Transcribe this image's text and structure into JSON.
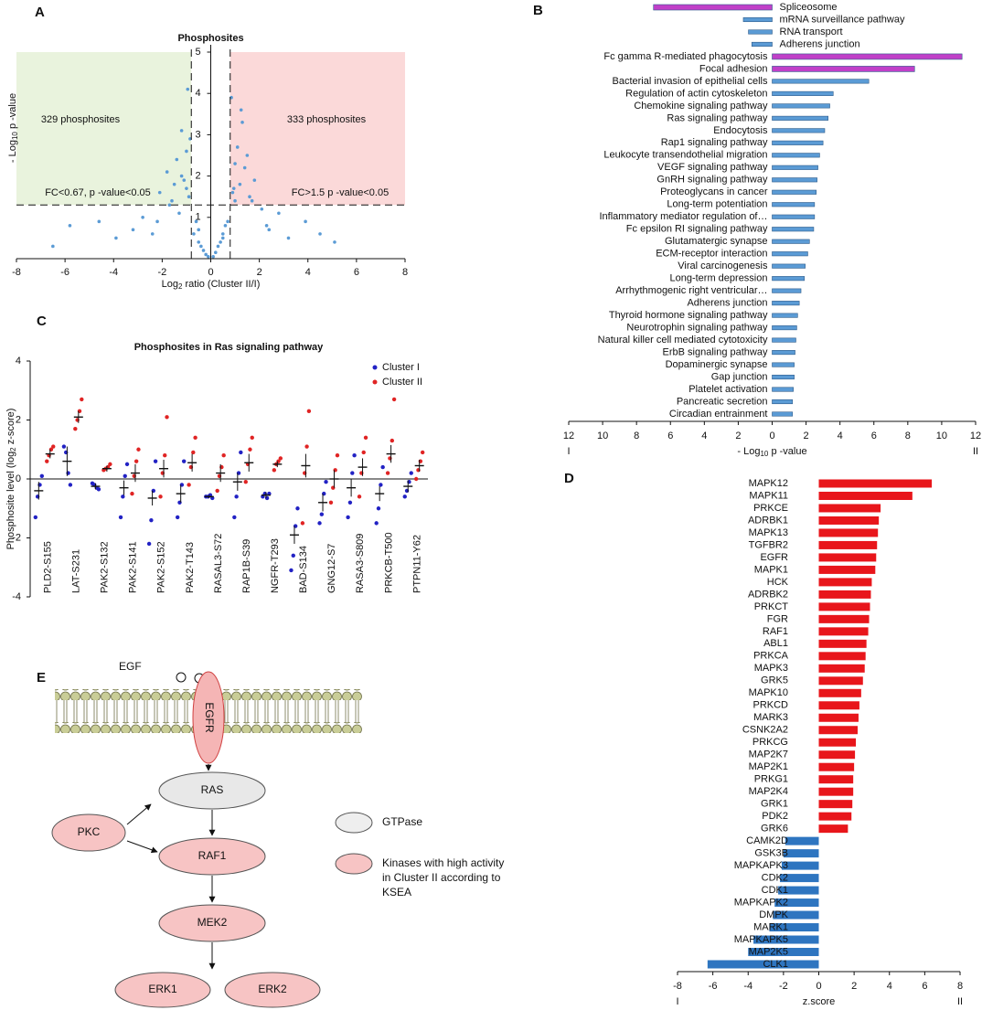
{
  "panel_labels": [
    "A",
    "B",
    "C",
    "D",
    "E"
  ],
  "chart_data": [
    {
      "type": "scatter",
      "title": "Phosphosites",
      "xlabel": {
        "pre": "Log",
        "sub": "2",
        "post": " ratio (Cluster II/I)"
      },
      "ylabel": {
        "pre": "- Log",
        "sub": "10",
        "post": " p -value"
      },
      "xlim": [
        -8,
        8
      ],
      "ylim": [
        0,
        5
      ],
      "xticks": [
        -8,
        -6,
        -4,
        -2,
        0,
        2,
        4,
        6,
        8
      ],
      "yticks": [
        1,
        2,
        3,
        4,
        5
      ],
      "color": "#5b9bd5",
      "thresholds": {
        "x": [
          -0.8,
          0.8
        ],
        "y": 1.3
      },
      "regions": [
        {
          "label": "329 phosphosites",
          "note": "FC<0.67, p -value<0.05",
          "color": "#e9f3dd"
        },
        {
          "label": "333 phosphosites",
          "note": "FC>1.5 p -value<0.05",
          "color": "#fbd9d9"
        }
      ],
      "x": [
        -6.5,
        -5.8,
        -4.6,
        -3.9,
        -3.2,
        -2.8,
        -2.4,
        -2.1,
        -1.8,
        -1.6,
        -1.4,
        -1.3,
        -1.2,
        -1.1,
        -1.0,
        -0.9,
        -0.7,
        -0.6,
        -0.5,
        -0.4,
        -0.3,
        -0.2,
        -0.1,
        0.1,
        0.2,
        0.3,
        0.4,
        0.5,
        0.6,
        0.7,
        0.9,
        1.0,
        1.1,
        1.2,
        1.3,
        1.4,
        1.6,
        1.8,
        2.1,
        2.4,
        2.8,
        3.2,
        3.9,
        4.5,
        5.1,
        -1.5,
        -1.2,
        -0.95,
        -1.7,
        -2.2,
        1.5,
        1.25,
        0.95,
        1.7,
        2.3,
        -0.85,
        0.85,
        -1.0,
        1.0,
        -0.5,
        0.5
      ],
      "y": [
        0.3,
        0.8,
        0.9,
        0.5,
        0.7,
        1.0,
        0.6,
        1.6,
        2.1,
        1.4,
        2.4,
        1.1,
        3.1,
        1.9,
        2.6,
        1.5,
        0.6,
        0.9,
        0.4,
        0.3,
        0.2,
        0.1,
        0.05,
        0.05,
        0.15,
        0.3,
        0.4,
        0.5,
        0.8,
        0.9,
        1.6,
        2.3,
        2.7,
        1.8,
        3.3,
        2.2,
        1.5,
        1.9,
        1.2,
        0.7,
        1.1,
        0.5,
        0.9,
        0.6,
        0.4,
        1.8,
        2.0,
        4.1,
        1.3,
        0.9,
        2.5,
        3.6,
        1.7,
        1.4,
        0.8,
        2.9,
        3.9,
        1.7,
        1.4,
        0.7,
        0.6
      ]
    },
    {
      "type": "hbar",
      "categories": [
        "Spliceosome",
        "mRNA surveillance pathway",
        "RNA transport",
        "Adherens junction",
        "Fc gamma R-mediated phagocytosis",
        "Focal adhesion",
        "Bacterial invasion of epithelial cells",
        "Regulation of actin cytoskeleton",
        "Chemokine signaling pathway",
        "Ras signaling pathway",
        "Endocytosis",
        "Rap1 signaling pathway",
        "Leukocyte transendothelial migration",
        "VEGF signaling pathway",
        "GnRH signaling pathway",
        "Proteoglycans in cancer",
        "Long-term potentiation",
        "Inflammatory mediator regulation of…",
        "Fc epsilon RI signaling pathway",
        "Glutamatergic synapse",
        "ECM-receptor interaction",
        "Viral carcinogenesis",
        "Long-term depression",
        "Arrhythmogenic right ventricular…",
        "Adherens junction",
        "Thyroid hormone signaling pathway",
        "Neurotrophin signaling pathway",
        "Natural killer cell mediated cytotoxicity",
        "ErbB signaling pathway",
        "Dopaminergic synapse",
        "Gap junction",
        "Platelet activation",
        "Pancreatic secretion",
        "Circadian entrainment"
      ],
      "values": [
        -7.0,
        -1.7,
        -1.4,
        -1.2,
        11.2,
        8.4,
        5.7,
        3.6,
        3.4,
        3.3,
        3.1,
        3.0,
        2.8,
        2.7,
        2.65,
        2.6,
        2.5,
        2.5,
        2.45,
        2.2,
        2.1,
        1.95,
        1.9,
        1.7,
        1.6,
        1.5,
        1.45,
        1.4,
        1.35,
        1.3,
        1.3,
        1.25,
        1.2,
        1.2
      ],
      "colors": [
        "#c040c8",
        "#5b9bd5",
        "#5b9bd5",
        "#5b9bd5",
        "#c040c8",
        "#c040c8",
        "#5b9bd5",
        "#5b9bd5",
        "#5b9bd5",
        "#5b9bd5",
        "#5b9bd5",
        "#5b9bd5",
        "#5b9bd5",
        "#5b9bd5",
        "#5b9bd5",
        "#5b9bd5",
        "#5b9bd5",
        "#5b9bd5",
        "#5b9bd5",
        "#5b9bd5",
        "#5b9bd5",
        "#5b9bd5",
        "#5b9bd5",
        "#5b9bd5",
        "#5b9bd5",
        "#5b9bd5",
        "#5b9bd5",
        "#5b9bd5",
        "#5b9bd5",
        "#5b9bd5",
        "#5b9bd5",
        "#5b9bd5",
        "#5b9bd5",
        "#5b9bd5"
      ],
      "xlim": [
        -12,
        12
      ],
      "xticks": [
        {
          "value": -12,
          "label": "12"
        },
        {
          "value": -10,
          "label": "10"
        },
        {
          "value": -8,
          "label": "8"
        },
        {
          "value": -6,
          "label": "6"
        },
        {
          "value": -4,
          "label": "4"
        },
        {
          "value": -2,
          "label": "2"
        },
        0,
        2,
        4,
        6,
        8,
        10,
        12
      ],
      "xlabel": {
        "pre": "-  Log",
        "sub": "10",
        "post": " p -value"
      },
      "end_labels": [
        "I",
        "II"
      ]
    },
    {
      "type": "dot",
      "title": "Phosphosites in Ras signaling pathway",
      "categories": [
        "PLD2-S155",
        "LAT-S231",
        "PAK2-S132",
        "PAK2-S141",
        "PAK2-S152",
        "PAK2-T143",
        "RASAL3-S72",
        "RAP1B-S39",
        "NGFR-T293",
        "BAD-S134",
        "GNG12-S7",
        "RASA3-S809",
        "PRKCB-T500",
        "PTPN11-Y62"
      ],
      "ylim": [
        -4,
        4
      ],
      "yticks": [
        -4,
        -2,
        0,
        2,
        4
      ],
      "ylabel": {
        "pre": "Phosphosite level (log",
        "sub": "2",
        "post": " z-score)"
      },
      "legend": "top-right",
      "series": [
        {
          "name": "Cluster I",
          "color": "#2222c4",
          "values": [
            -0.4,
            0.6,
            -0.25,
            -0.3,
            -0.65,
            -0.5,
            -0.6,
            -0.1,
            -0.55,
            -1.9,
            -0.8,
            -0.3,
            -0.5,
            -0.25
          ],
          "errors": [
            0.3,
            0.5,
            0.1,
            0.25,
            0.25,
            0.3,
            0.05,
            0.3,
            0.1,
            0.3,
            0.3,
            0.3,
            0.25,
            0.2
          ],
          "points": [
            [
              -1.3,
              -0.6,
              -0.2,
              0.1
            ],
            [
              1.1,
              0.9,
              0.2,
              -0.2
            ],
            [
              -0.15,
              -0.2,
              -0.3,
              -0.35
            ],
            [
              -1.3,
              -0.6,
              0.1,
              0.5
            ],
            [
              -2.2,
              -1.4,
              -0.4,
              0.6
            ],
            [
              -1.3,
              -0.8,
              -0.2,
              0.6
            ],
            [
              -0.6,
              -0.6,
              -0.55,
              -0.65
            ],
            [
              -1.3,
              -0.6,
              0.2,
              0.9
            ],
            [
              -0.6,
              -0.5,
              -0.65,
              -0.5
            ],
            [
              -3.1,
              -2.6,
              -1.6,
              -1.0
            ],
            [
              -1.5,
              -1.2,
              -0.5,
              -0.1
            ],
            [
              -1.3,
              -0.8,
              0.2,
              0.8
            ],
            [
              -1.5,
              -1.0,
              -0.2,
              0.4
            ],
            [
              -0.6,
              -0.4,
              -0.1,
              0.2
            ]
          ]
        },
        {
          "name": "Cluster II",
          "color": "#e02424",
          "values": [
            0.85,
            2.1,
            0.35,
            0.2,
            0.35,
            0.55,
            0.2,
            0.55,
            0.5,
            0.45,
            0.0,
            0.4,
            0.85,
            0.45
          ],
          "errors": [
            0.15,
            0.2,
            0.1,
            0.3,
            0.3,
            0.3,
            0.3,
            0.3,
            0.1,
            0.4,
            0.3,
            0.3,
            0.3,
            0.2
          ],
          "points": [
            [
              0.6,
              0.8,
              1.0,
              1.1
            ],
            [
              1.7,
              2.0,
              2.3,
              2.7
            ],
            [
              0.3,
              0.35,
              0.4,
              0.5
            ],
            [
              -0.5,
              0.1,
              0.6,
              1.0
            ],
            [
              -0.6,
              0.2,
              0.8,
              2.1
            ],
            [
              -0.2,
              0.4,
              0.9,
              1.4
            ],
            [
              -0.4,
              0.1,
              0.4,
              0.8
            ],
            [
              -0.1,
              0.5,
              1.0,
              1.4
            ],
            [
              0.3,
              0.5,
              0.6,
              0.7
            ],
            [
              -1.5,
              0.2,
              1.1,
              2.3
            ],
            [
              -0.8,
              -0.3,
              0.3,
              0.8
            ],
            [
              -0.6,
              0.2,
              0.9,
              1.4
            ],
            [
              0.2,
              0.7,
              1.3,
              2.7
            ],
            [
              0.0,
              0.3,
              0.6,
              0.9
            ]
          ]
        }
      ]
    },
    {
      "type": "hbar",
      "categories": [
        "MAPK12",
        "MAPK11",
        "PRKCE",
        "ADRBK1",
        "MAPK13",
        "TGFBR2",
        "EGFR",
        "MAPK1",
        "HCK",
        "ADRBK2",
        "PRKCT",
        "FGR",
        "RAF1",
        "ABL1",
        "PRKCA",
        "MAPK3",
        "GRK5",
        "MAPK10",
        "PRKCD",
        "MARK3",
        "CSNK2A2",
        "PRKCG",
        "MAP2K7",
        "MAP2K1",
        "PRKG1",
        "MAP2K4",
        "GRK1",
        "PDK2",
        "GRK6",
        "CAMK2D",
        "GSK3B",
        "MAPKAPK3",
        "CDK2",
        "CDK1",
        "MAPKAPK2",
        "DMPK",
        "MARK1",
        "MAPKAPK5",
        "MAP2K5",
        "CLK1"
      ],
      "values": [
        6.4,
        5.3,
        3.5,
        3.4,
        3.35,
        3.3,
        3.25,
        3.2,
        3.0,
        2.95,
        2.9,
        2.85,
        2.8,
        2.7,
        2.65,
        2.6,
        2.5,
        2.4,
        2.3,
        2.25,
        2.2,
        2.1,
        2.05,
        2.0,
        1.95,
        1.95,
        1.9,
        1.85,
        1.65,
        -1.9,
        -2.0,
        -2.1,
        -2.2,
        -2.3,
        -2.5,
        -2.6,
        -2.8,
        -3.7,
        -4.0,
        -6.3
      ],
      "colors": [
        "#e8161b",
        "#e8161b",
        "#e8161b",
        "#e8161b",
        "#e8161b",
        "#e8161b",
        "#e8161b",
        "#e8161b",
        "#e8161b",
        "#e8161b",
        "#e8161b",
        "#e8161b",
        "#e8161b",
        "#e8161b",
        "#e8161b",
        "#e8161b",
        "#e8161b",
        "#e8161b",
        "#e8161b",
        "#e8161b",
        "#e8161b",
        "#e8161b",
        "#e8161b",
        "#e8161b",
        "#e8161b",
        "#e8161b",
        "#e8161b",
        "#e8161b",
        "#e8161b",
        "#2e75c0",
        "#2e75c0",
        "#2e75c0",
        "#2e75c0",
        "#2e75c0",
        "#2e75c0",
        "#2e75c0",
        "#2e75c0",
        "#2e75c0",
        "#2e75c0",
        "#2e75c0"
      ],
      "xlim": [
        -8,
        8
      ],
      "xticks": [
        -8,
        -6,
        -4,
        -2,
        0,
        2,
        4,
        6,
        8
      ],
      "xlabel": {
        "pre": "z.score",
        "sub": "",
        "post": ""
      },
      "end_labels": [
        "I",
        "II"
      ]
    }
  ],
  "diagram": {
    "egf": "EGF",
    "egfr": "EGFR",
    "ras": "RAS",
    "pkc": "PKC",
    "raf1": "RAF1",
    "mek2": "MEK2",
    "erk1": "ERK1",
    "erk2": "ERK2",
    "legend_gtpase": "GTPase",
    "legend_kinase": [
      "Kinases with high activity",
      "in Cluster II according to",
      "KSEA"
    ]
  }
}
